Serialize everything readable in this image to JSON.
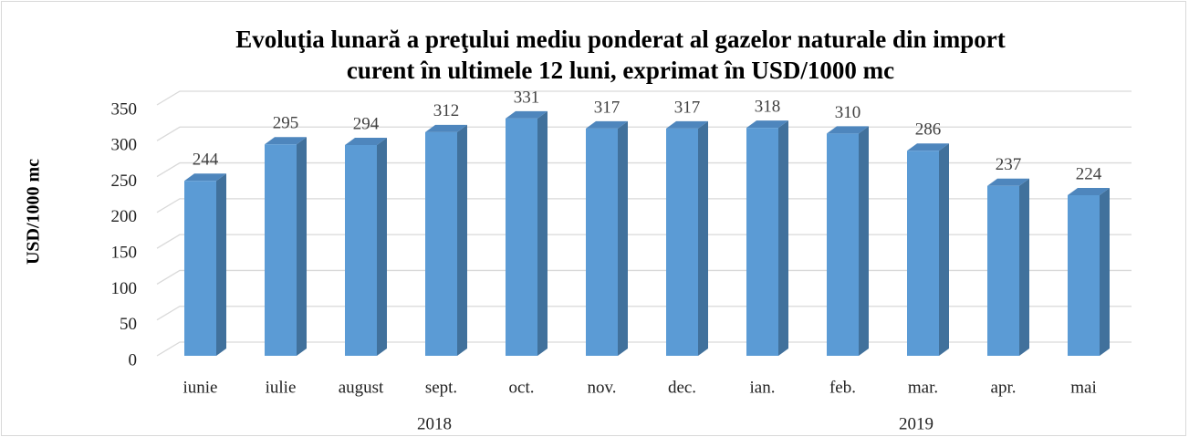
{
  "chart_data": {
    "type": "bar3d",
    "title": [
      "Evoluţia lunară a preţului mediu ponderat al gazelor naturale din import",
      "curent în ultimele 12 luni, exprimat în USD/1000 mc"
    ],
    "y_label": "USD/1000 mc",
    "categories": [
      "iunie",
      "iulie",
      "august",
      "sept.",
      "oct.",
      "nov.",
      "dec.",
      "ian.",
      "feb.",
      "mar.",
      "apr.",
      "mai"
    ],
    "year_labels": [
      "2018",
      "2019"
    ],
    "values": [
      244,
      295,
      294,
      312,
      331,
      317,
      317,
      318,
      310,
      286,
      237,
      224
    ],
    "color": "#5b9bd5",
    "ylim": [
      0,
      350
    ],
    "yticks": [
      0,
      50,
      100,
      150,
      200,
      250,
      300,
      350
    ],
    "grid": true
  }
}
